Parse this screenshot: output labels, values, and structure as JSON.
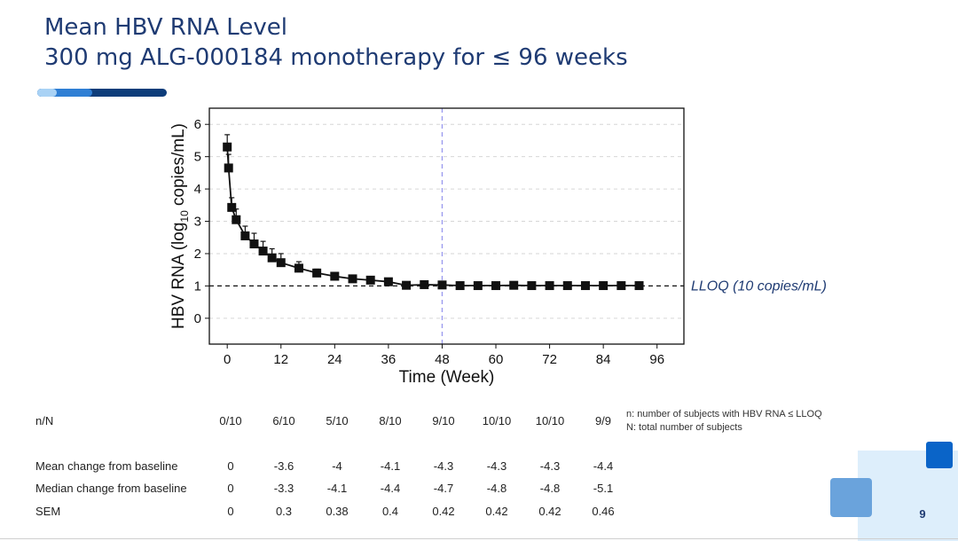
{
  "slide": {
    "title_line1": "Mean HBV RNA Level",
    "title_line2": "300 mg ALG-000184 monotherapy for ≤ 96 weeks",
    "page_number": "9",
    "colors": {
      "title": "#1f3b73",
      "accent_dark": "#0d3d7a",
      "accent_mid": "#2f7fd4",
      "accent_light": "#a9d2f5",
      "lloq_label": "#1f3b73",
      "week48_line": "#9999ee"
    }
  },
  "chart_data": {
    "type": "line",
    "xlabel": "Time (Week)",
    "ylabel_prefix": "HBV  RNA  (log",
    "ylabel_subscript": "10",
    "ylabel_suffix": " copies/mL)",
    "xlim": [
      -4,
      102
    ],
    "ylim": [
      -0.8,
      6.5
    ],
    "xticks": [
      0,
      12,
      24,
      36,
      48,
      60,
      72,
      84,
      96
    ],
    "yticks": [
      0,
      1,
      2,
      3,
      4,
      5,
      6
    ],
    "grid": "horizontal dashed",
    "reference_line": {
      "y": 1,
      "label": "LLOQ (10 copies/mL)",
      "style": "dashed"
    },
    "vertical_line": {
      "x": 48,
      "style": "dashed"
    },
    "series": [
      {
        "x": [
          0,
          0.3,
          1,
          2,
          4,
          6,
          8,
          10,
          12,
          16,
          20,
          24,
          28,
          32,
          36,
          40,
          44,
          48,
          52,
          56,
          60,
          64,
          68,
          72,
          76,
          80,
          84,
          88,
          92
        ],
        "y": [
          5.3,
          4.65,
          3.43,
          3.05,
          2.55,
          2.3,
          2.08,
          1.87,
          1.72,
          1.55,
          1.4,
          1.3,
          1.22,
          1.18,
          1.13,
          1.02,
          1.04,
          1.03,
          1.01,
          1.01,
          1.01,
          1.02,
          1.01,
          1.01,
          1.01,
          1.01,
          1.01,
          1.01,
          1.01
        ],
        "err": [
          0.38,
          0.42,
          0.3,
          0.33,
          0.3,
          0.33,
          0.3,
          0.28,
          0.28,
          0.2,
          0.12,
          0.1,
          0.08,
          0.08,
          0.07,
          0.05,
          0.05,
          0.05,
          0.03,
          0.02,
          0.02,
          0.02,
          0.02,
          0.02,
          0.02,
          0.02,
          0.02,
          0.02,
          0.02
        ]
      }
    ]
  },
  "table": {
    "nn_label": "n/N",
    "nn_values": [
      "0/10",
      "6/10",
      "5/10",
      "8/10",
      "9/10",
      "10/10",
      "10/10",
      "9/9"
    ],
    "rows": [
      {
        "label": "Mean change from baseline",
        "values": [
          "0",
          "-3.6",
          "-4",
          "-4.1",
          "-4.3",
          "-4.3",
          "-4.3",
          "-4.4"
        ]
      },
      {
        "label": "Median change from baseline",
        "values": [
          "0",
          "-3.3",
          "-4.1",
          "-4.4",
          "-4.7",
          "-4.8",
          "-4.8",
          "-5.1"
        ]
      },
      {
        "label": "SEM",
        "values": [
          "0",
          "0.3",
          "0.38",
          "0.4",
          "0.42",
          "0.42",
          "0.42",
          "0.46"
        ]
      }
    ],
    "note_line1": "n: number of subjects with HBV RNA ≤ LLOQ",
    "note_line2": "N: total number of subjects"
  }
}
